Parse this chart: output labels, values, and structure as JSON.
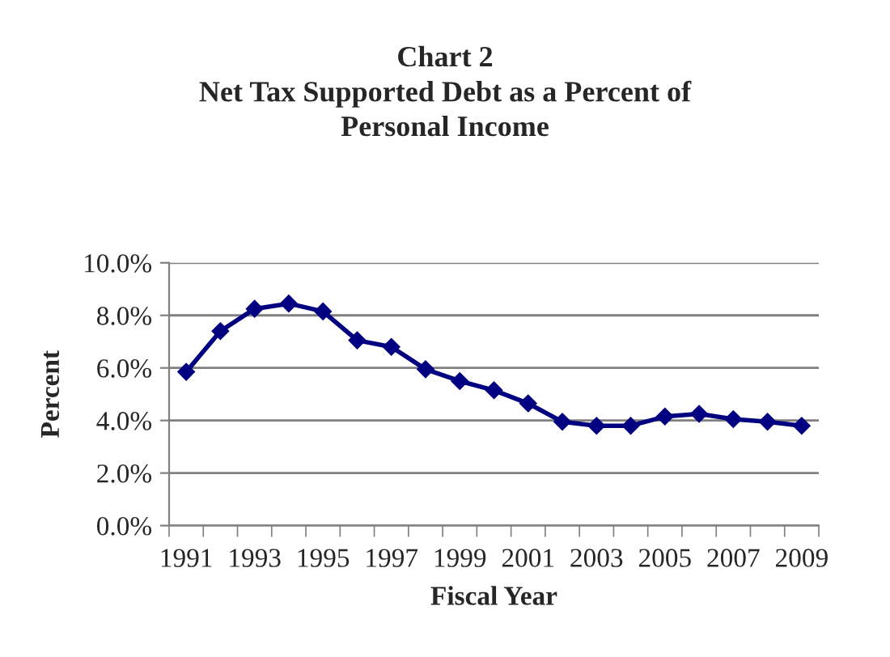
{
  "chart_data": {
    "type": "line",
    "title": "Chart 2\nNet Tax Supported Debt as a Percent of\nPersonal Income",
    "xlabel": "Fiscal Year",
    "ylabel": "Percent",
    "categories": [
      "1991",
      null,
      "1993",
      null,
      "1995",
      null,
      "1997",
      null,
      "1999",
      null,
      "2001",
      null,
      "2003",
      null,
      "2005",
      null,
      "2007",
      null,
      "2009"
    ],
    "series": [
      {
        "color": "#000080",
        "values": [
          5.85,
          7.4,
          8.25,
          8.45,
          8.15,
          7.05,
          6.8,
          5.95,
          5.5,
          5.15,
          4.65,
          3.95,
          3.8,
          3.8,
          4.15,
          4.25,
          4.05,
          3.95,
          3.8
        ]
      }
    ],
    "ylim": [
      0,
      10
    ],
    "yticks": [
      {
        "value": 0,
        "label": "0.0%"
      },
      {
        "value": 2,
        "label": "2.0%"
      },
      {
        "value": 4,
        "label": "4.0%"
      },
      {
        "value": 6,
        "label": "6.0%"
      },
      {
        "value": 8,
        "label": "8.0%"
      },
      {
        "value": 10,
        "label": "10.0%"
      }
    ],
    "grid": "y",
    "marker": "diamond",
    "line_style": "solid"
  }
}
